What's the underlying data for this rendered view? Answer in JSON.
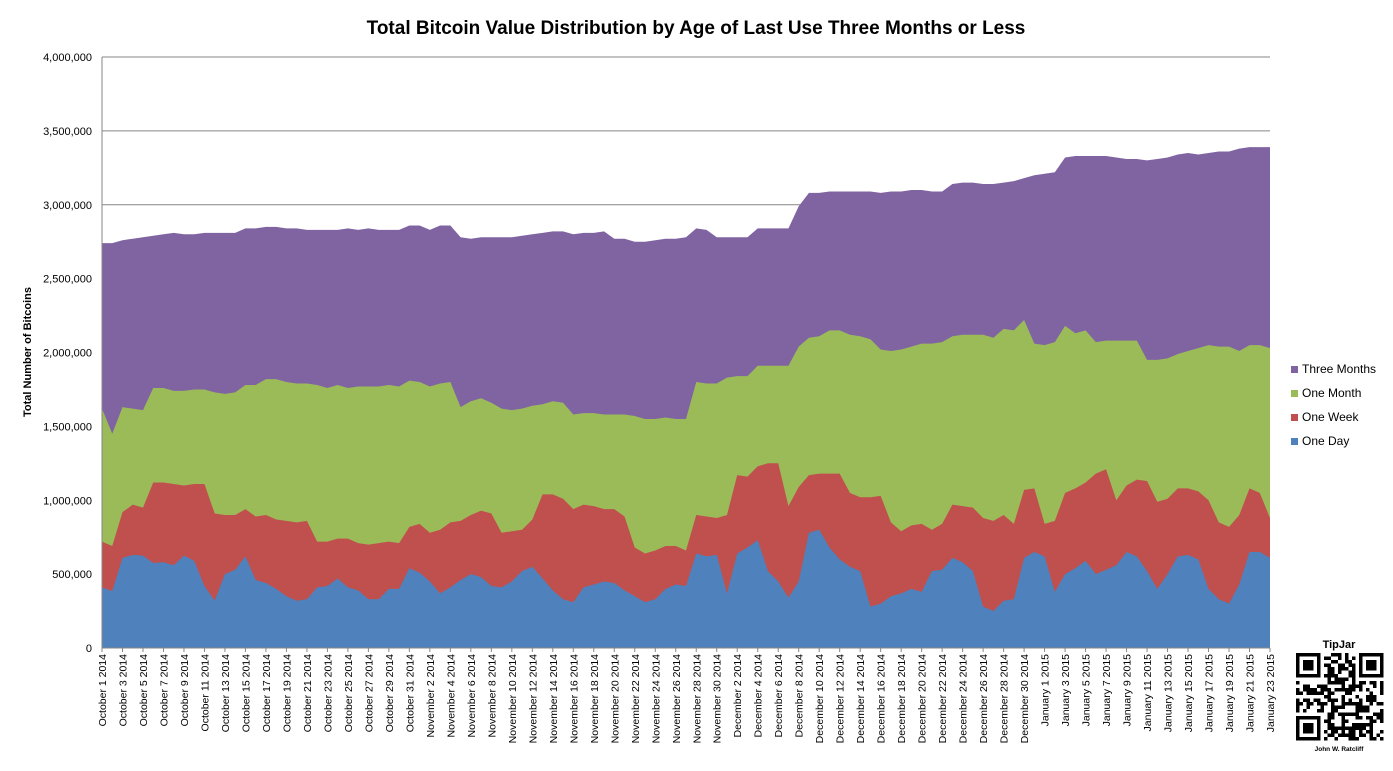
{
  "chart_data": {
    "type": "area",
    "stacked": true,
    "title": "Total Bitcoin Value Distribution by Age of Last Use Three Months or Less",
    "ylabel": "Total Number of Bitcoins",
    "xlabel": "",
    "ylim": [
      0,
      4000000
    ],
    "yticks": [
      0,
      500000,
      1000000,
      1500000,
      2000000,
      2500000,
      3000000,
      3500000,
      4000000
    ],
    "ytick_labels": [
      "0",
      "500,000",
      "1,000,000",
      "1,500,000",
      "2,000,000",
      "2,500,000",
      "3,000,000",
      "3,500,000",
      "4,000,000"
    ],
    "grid": true,
    "legend_position": "right",
    "categories": [
      "October 1 2014",
      "October 3 2014",
      "October 5 2014",
      "October 7 2014",
      "October 9 2014",
      "October 11 2014",
      "October 13 2014",
      "October 15 2014",
      "October 17 2014",
      "October 19 2014",
      "October 21 2014",
      "October 23 2014",
      "October 25 2014",
      "October 27 2014",
      "October 29 2014",
      "October 31 2014",
      "November 2 2014",
      "November 4 2014",
      "November 6 2014",
      "November 8 2014",
      "November 10 2014",
      "November 12 2014",
      "November 14 2014",
      "November 16 2014",
      "November 18 2014",
      "November 20 2014",
      "November 22 2014",
      "November 24 2014",
      "November 26 2014",
      "November 28 2014",
      "November 30 2014",
      "December 2 2014",
      "December 4 2014",
      "December 6 2014",
      "December 8 2014",
      "December 10 2014",
      "December 12 2014",
      "December 14 2014",
      "December 16 2014",
      "December 18 2014",
      "December 20 2014",
      "December 22 2014",
      "December 24 2014",
      "December 26 2014",
      "December 28 2014",
      "December 30 2014",
      "January 1 2015",
      "January 3 2015",
      "January 5 2015",
      "January 7 2015",
      "January 9 2015",
      "January 11 2015",
      "January 13 2015",
      "January 15 2015",
      "January 17 2015",
      "January 19 2015",
      "January 21 2015",
      "January 23 2015"
    ],
    "cumulative_tops": {
      "one_day": [
        410000,
        385000,
        610000,
        630000,
        625000,
        575000,
        580000,
        560000,
        625000,
        590000,
        420000,
        320000,
        500000,
        530000,
        620000,
        460000,
        440000,
        400000,
        350000,
        320000,
        330000,
        410000,
        420000,
        470000,
        410000,
        390000,
        330000,
        330000,
        400000,
        400000,
        540000,
        510000,
        450000,
        370000,
        410000,
        460000,
        500000,
        480000,
        420000,
        410000,
        450000,
        520000,
        550000,
        470000,
        390000,
        330000,
        310000,
        410000,
        430000,
        450000,
        440000,
        390000,
        350000,
        310000,
        330000,
        400000,
        430000,
        420000,
        640000,
        620000,
        630000,
        370000,
        640000,
        680000,
        730000,
        520000,
        450000,
        340000,
        450000,
        780000,
        800000,
        680000,
        600000,
        550000,
        520000,
        280000,
        300000,
        350000,
        370000,
        400000,
        380000,
        520000,
        530000,
        610000,
        580000,
        520000,
        280000,
        250000,
        320000,
        330000,
        610000,
        650000,
        620000,
        380000,
        500000,
        540000,
        590000,
        500000,
        530000,
        560000,
        650000,
        620000,
        520000,
        400000,
        500000,
        620000,
        630000,
        600000,
        400000,
        330000,
        300000,
        430000,
        650000,
        650000,
        610000
      ],
      "one_week": [
        720000,
        690000,
        920000,
        970000,
        950000,
        1120000,
        1120000,
        1110000,
        1100000,
        1110000,
        1110000,
        910000,
        900000,
        900000,
        940000,
        890000,
        900000,
        870000,
        860000,
        850000,
        860000,
        720000,
        720000,
        740000,
        740000,
        710000,
        700000,
        710000,
        720000,
        710000,
        820000,
        840000,
        780000,
        800000,
        850000,
        860000,
        900000,
        930000,
        910000,
        780000,
        790000,
        800000,
        870000,
        1040000,
        1040000,
        1010000,
        940000,
        970000,
        960000,
        940000,
        940000,
        890000,
        680000,
        640000,
        660000,
        690000,
        690000,
        660000,
        900000,
        890000,
        880000,
        900000,
        1170000,
        1160000,
        1230000,
        1250000,
        1250000,
        960000,
        1090000,
        1170000,
        1180000,
        1180000,
        1180000,
        1050000,
        1020000,
        1020000,
        1030000,
        850000,
        790000,
        830000,
        840000,
        800000,
        840000,
        970000,
        960000,
        950000,
        880000,
        860000,
        900000,
        840000,
        1070000,
        1080000,
        840000,
        860000,
        1050000,
        1080000,
        1120000,
        1180000,
        1210000,
        1000000,
        1100000,
        1140000,
        1130000,
        990000,
        1010000,
        1080000,
        1080000,
        1060000,
        1000000,
        850000,
        820000,
        900000,
        1080000,
        1050000,
        880000
      ],
      "one_month": [
        1620000,
        1450000,
        1630000,
        1620000,
        1610000,
        1760000,
        1760000,
        1740000,
        1740000,
        1750000,
        1750000,
        1730000,
        1720000,
        1730000,
        1780000,
        1780000,
        1820000,
        1820000,
        1800000,
        1790000,
        1790000,
        1780000,
        1760000,
        1780000,
        1760000,
        1770000,
        1770000,
        1770000,
        1780000,
        1770000,
        1810000,
        1800000,
        1770000,
        1790000,
        1800000,
        1630000,
        1670000,
        1690000,
        1660000,
        1620000,
        1610000,
        1620000,
        1640000,
        1650000,
        1670000,
        1660000,
        1580000,
        1590000,
        1590000,
        1580000,
        1580000,
        1580000,
        1570000,
        1550000,
        1550000,
        1560000,
        1550000,
        1550000,
        1800000,
        1790000,
        1790000,
        1830000,
        1840000,
        1840000,
        1910000,
        1910000,
        1910000,
        1910000,
        2040000,
        2100000,
        2110000,
        2150000,
        2150000,
        2120000,
        2110000,
        2090000,
        2020000,
        2010000,
        2020000,
        2040000,
        2060000,
        2060000,
        2070000,
        2110000,
        2120000,
        2120000,
        2120000,
        2100000,
        2160000,
        2150000,
        2220000,
        2060000,
        2050000,
        2070000,
        2180000,
        2130000,
        2150000,
        2070000,
        2080000,
        2080000,
        2080000,
        2080000,
        1950000,
        1950000,
        1960000,
        1990000,
        2010000,
        2030000,
        2050000,
        2040000,
        2040000,
        2010000,
        2050000,
        2050000,
        2030000
      ],
      "three_months": [
        2740000,
        2740000,
        2760000,
        2770000,
        2780000,
        2790000,
        2800000,
        2810000,
        2800000,
        2800000,
        2810000,
        2810000,
        2810000,
        2810000,
        2840000,
        2840000,
        2850000,
        2850000,
        2840000,
        2840000,
        2830000,
        2830000,
        2830000,
        2830000,
        2840000,
        2830000,
        2840000,
        2830000,
        2830000,
        2830000,
        2860000,
        2860000,
        2830000,
        2860000,
        2860000,
        2780000,
        2770000,
        2780000,
        2780000,
        2780000,
        2780000,
        2790000,
        2800000,
        2810000,
        2820000,
        2820000,
        2800000,
        2810000,
        2810000,
        2820000,
        2770000,
        2770000,
        2750000,
        2750000,
        2760000,
        2770000,
        2770000,
        2780000,
        2840000,
        2830000,
        2780000,
        2780000,
        2780000,
        2780000,
        2840000,
        2840000,
        2840000,
        2840000,
        2990000,
        3080000,
        3080000,
        3090000,
        3090000,
        3090000,
        3090000,
        3090000,
        3080000,
        3090000,
        3090000,
        3100000,
        3100000,
        3090000,
        3090000,
        3140000,
        3150000,
        3150000,
        3140000,
        3140000,
        3150000,
        3160000,
        3180000,
        3200000,
        3210000,
        3220000,
        3320000,
        3330000,
        3330000,
        3330000,
        3330000,
        3320000,
        3310000,
        3310000,
        3300000,
        3310000,
        3320000,
        3340000,
        3350000,
        3340000,
        3350000,
        3360000,
        3360000,
        3380000,
        3390000,
        3390000,
        3390000
      ]
    },
    "series": [
      {
        "name": "Three Months",
        "color": "#8064a2"
      },
      {
        "name": "One Month",
        "color": "#9bbb59"
      },
      {
        "name": "One Week",
        "color": "#c0504d"
      },
      {
        "name": "One Day",
        "color": "#4f81bd"
      }
    ],
    "annotation": {
      "title": "TipJar",
      "name": "John W. Ratcliff"
    }
  }
}
